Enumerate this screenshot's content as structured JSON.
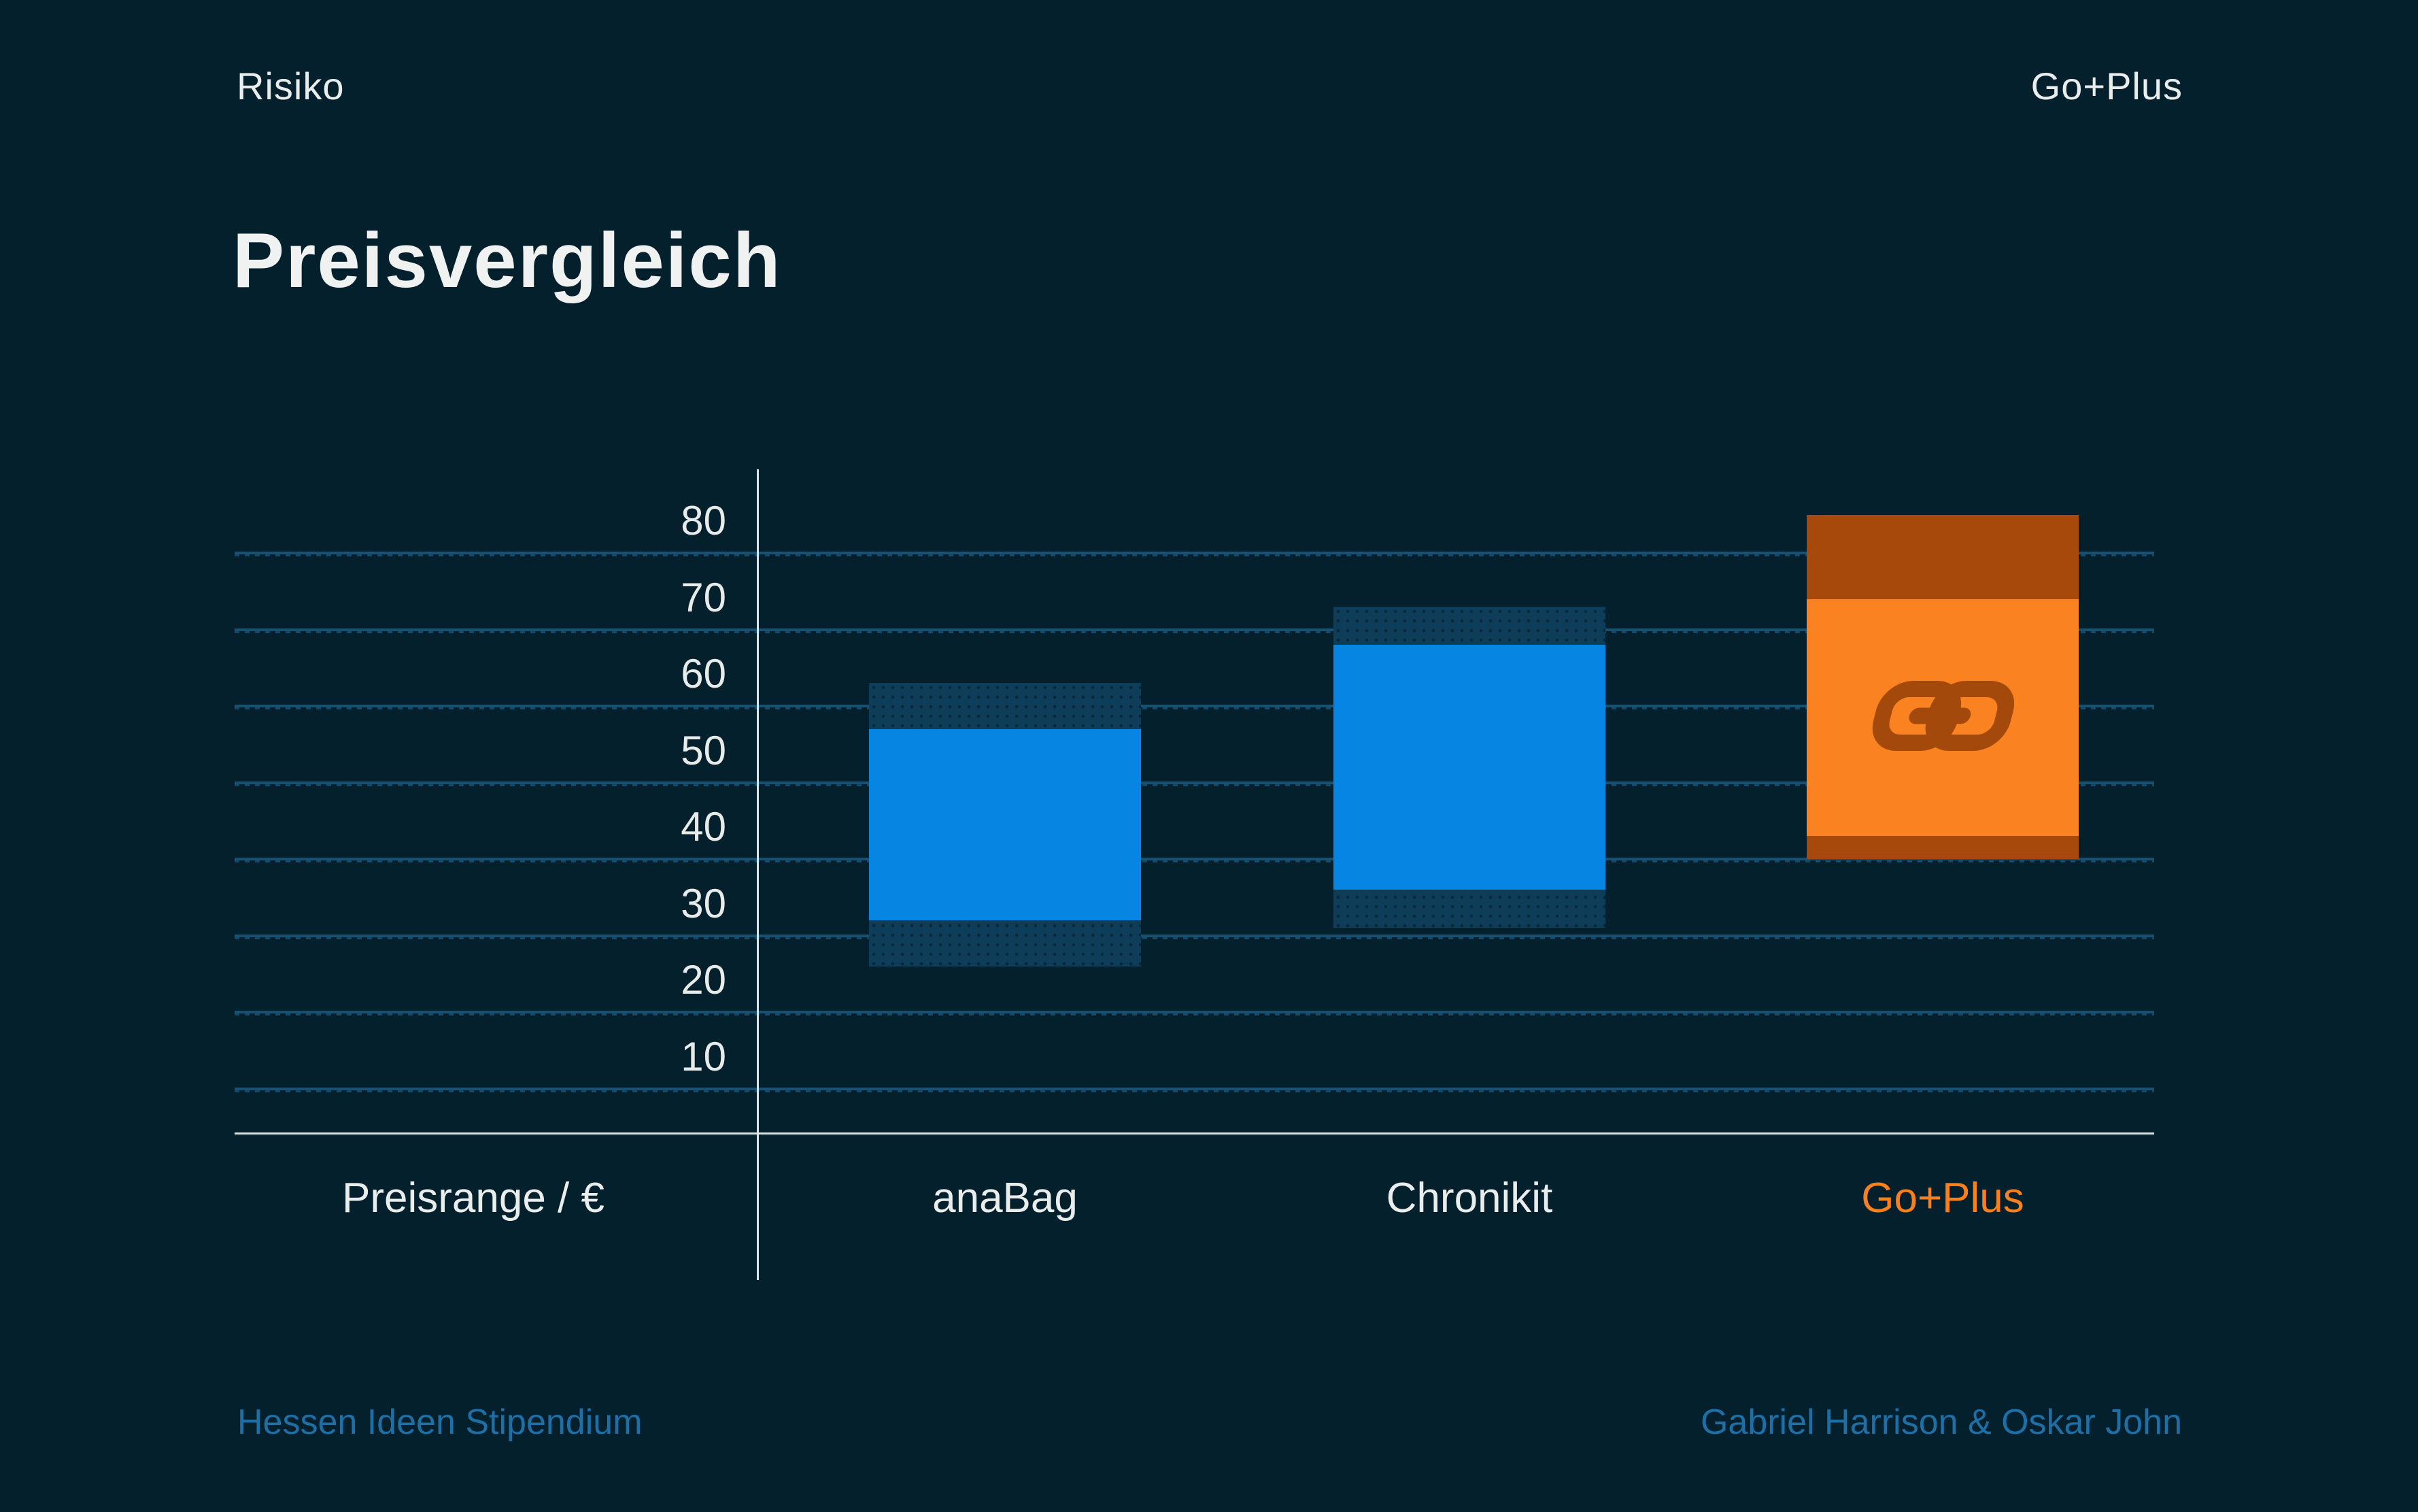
{
  "slide": {
    "background": "#04202D"
  },
  "header": {
    "left_label": "Risiko",
    "right_label": "Go+Plus"
  },
  "title": "Preisvergleich",
  "chart_data": {
    "type": "range_bar",
    "title": "Preisvergleich",
    "x_axis_title": "Preisrange / €",
    "y_ticks": [
      80,
      70,
      60,
      50,
      40,
      30,
      20,
      10
    ],
    "y_range_shown": [
      10,
      80
    ],
    "grid": true,
    "legend": "none",
    "categories": [
      "anaBag",
      "Chronikit",
      "Go+Plus"
    ],
    "series": [
      {
        "name": "anaBag",
        "outer_range_eur": [
          26,
          63
        ],
        "inner_range_eur": [
          32,
          57
        ],
        "has_logo": false
      },
      {
        "name": "Chronikit",
        "outer_range_eur": [
          31,
          73
        ],
        "inner_range_eur": [
          36,
          68
        ],
        "has_logo": false
      },
      {
        "name": "Go+Plus",
        "outer_range_eur": [
          40,
          85
        ],
        "inner_range_eur": [
          43,
          74
        ],
        "has_logo": true
      }
    ]
  },
  "colors": {
    "background": "#04202D",
    "grid": "#175173",
    "axis_line": "#DCE2E2",
    "tick_text": "#E7EBEA",
    "label_text": "#E9EDEC",
    "bar_blue": "#0685E3",
    "bar_blue_cap": "#0D3D59",
    "bar_orange": "#FB8220",
    "bar_orange_cap": "#A8490C",
    "logo_color": "#A3490B",
    "brand_orange_label": "#F8801F",
    "footer_blue": "#1E6FA6"
  },
  "icons": {
    "go_logo": "go-chain-link-logo"
  },
  "footer": {
    "left": "Hessen Ideen Stipendium",
    "right": "Gabriel Harrison & Oskar John"
  }
}
